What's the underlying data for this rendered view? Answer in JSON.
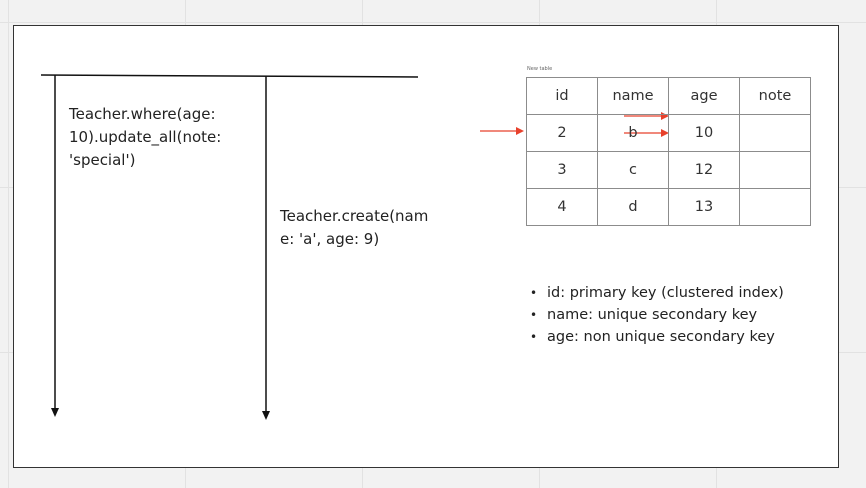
{
  "notes": {
    "left": "Teacher.where(age:\n10).update_all(note:\n'special')",
    "right": "Teacher.create(nam\ne: 'a', age: 9)"
  },
  "table": {
    "caption": "New table",
    "headers": [
      "id",
      "name",
      "age",
      "note"
    ],
    "rows": [
      [
        "2",
        "b",
        "10",
        ""
      ],
      [
        "3",
        "c",
        "12",
        ""
      ],
      [
        "4",
        "d",
        "13",
        ""
      ]
    ]
  },
  "bullets": [
    "id: primary key (clustered index)",
    "name: unique secondary key",
    "age: non unique secondary key"
  ],
  "colors": {
    "arrow_accent": "#e8412c",
    "line": "#111111"
  }
}
